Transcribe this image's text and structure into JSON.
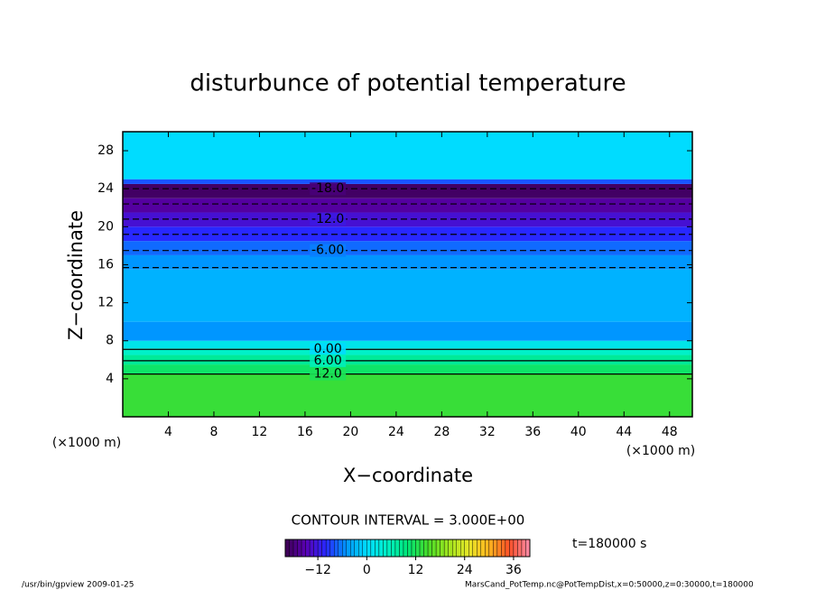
{
  "chart_data": {
    "type": "contour",
    "title": "disturbunce of potential temperature",
    "x_label": "X−coordinate",
    "y_label": "Z−coordinate",
    "x_unit": "(×1000 m)",
    "y_unit": "(×1000 m)",
    "xlim": [
      0,
      50
    ],
    "ylim": [
      0,
      30
    ],
    "xticks": [
      4,
      8,
      12,
      16,
      20,
      24,
      28,
      32,
      36,
      40,
      44,
      48
    ],
    "yticks": [
      4,
      8,
      12,
      16,
      20,
      24,
      28
    ],
    "bands": {
      "z_bottom": [
        0,
        4.5,
        5.5,
        6.5,
        7.2,
        8,
        10,
        15.5,
        17,
        18.5,
        20,
        21.5,
        23,
        24.5,
        25
      ],
      "z_top": [
        4.5,
        5.5,
        6.5,
        7.2,
        8,
        10,
        15.5,
        17,
        18.5,
        20,
        21.5,
        23,
        24.5,
        25,
        30
      ],
      "values": [
        14,
        11,
        8,
        5,
        2,
        -5,
        -3,
        -5,
        -7,
        -10,
        -13,
        -16,
        -19,
        -8,
        0
      ]
    },
    "contour_lines": [
      {
        "level": -18,
        "z": 24.0,
        "label": "-18.0"
      },
      {
        "level": -15,
        "z": 22.4
      },
      {
        "level": -12,
        "z": 20.8,
        "label": "-12.0"
      },
      {
        "level": -9,
        "z": 19.2
      },
      {
        "level": -6,
        "z": 17.5,
        "label": "-6.00"
      },
      {
        "level": -3,
        "z": 15.7
      },
      {
        "level": 0,
        "z": 7.1,
        "label": "0.00"
      },
      {
        "level": 6,
        "z": 5.9,
        "label": "6.00"
      },
      {
        "level": 12,
        "z": 4.5,
        "label": "12.0"
      }
    ],
    "contour_interval": "CONTOUR INTERVAL = 3.000E+00",
    "colorbar": {
      "lim": [
        -20,
        40
      ],
      "ticks": [
        {
          "value": -12,
          "label": "−12"
        },
        0,
        12,
        24,
        36
      ],
      "colormap": [
        "#3c0050",
        "#5a00b4",
        "#2828ff",
        "#0096ff",
        "#00dcff",
        "#00f0c8",
        "#00e678",
        "#46dc28",
        "#a0e61e",
        "#e6e628",
        "#ffb41e",
        "#ff5028",
        "#ff8caa"
      ]
    },
    "time_label": "t=180000 s",
    "footer_left": "/usr/bin/gpview   2009-01-25",
    "footer_right": "MarsCand_PotTemp.nc@PotTempDist,x=0:50000,z=0:30000,t=180000"
  }
}
